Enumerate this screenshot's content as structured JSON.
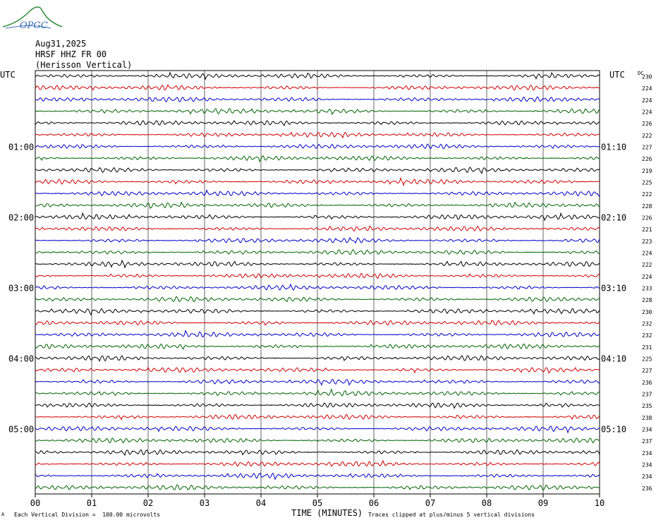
{
  "header": {
    "date": "Aug31,2025",
    "station": "HRSF HHZ FR 00",
    "location": "(Herisson Vertical)",
    "logo_text": "OPGC"
  },
  "footer": {
    "scale_note": "Each Vertical Division =  100.00 microvolts",
    "clip_note": "Traces clipped at plus/minus 5 vertical divisions",
    "corner_mark": "A"
  },
  "chart_data": {
    "type": "line",
    "title": "",
    "xlabel": "TIME (MINUTES)",
    "ylabel": "",
    "left_axis_title": "UTC",
    "right_axis_title": "UTC",
    "dc_title": "DC",
    "x_ticks": [
      "00",
      "01",
      "02",
      "03",
      "04",
      "05",
      "06",
      "07",
      "08",
      "09",
      "10"
    ],
    "xlim": [
      0,
      10
    ],
    "grid": true,
    "num_traces": 36,
    "trace_colors": [
      "#000000",
      "#d00000",
      "#0000c8",
      "#006400"
    ],
    "left_time_labels": [
      {
        "trace": 6,
        "label": "01:00"
      },
      {
        "trace": 12,
        "label": "02:00"
      },
      {
        "trace": 18,
        "label": "03:00"
      },
      {
        "trace": 24,
        "label": "04:00"
      },
      {
        "trace": 30,
        "label": "05:00"
      }
    ],
    "right_time_labels": [
      {
        "trace": 6,
        "label": "01:10"
      },
      {
        "trace": 12,
        "label": "02:10"
      },
      {
        "trace": 18,
        "label": "03:10"
      },
      {
        "trace": 24,
        "label": "04:10"
      },
      {
        "trace": 30,
        "label": "05:10"
      }
    ],
    "dc_values": [
      "230",
      "224",
      "224",
      "224",
      "226",
      "222",
      "227",
      "226",
      "219",
      "225",
      "222",
      "228",
      "226",
      "221",
      "223",
      "224",
      "222",
      "224",
      "233",
      "228",
      "230",
      "232",
      "232",
      "231",
      "225",
      "227",
      "236",
      "237",
      "235",
      "238",
      "234",
      "237",
      "234",
      "234",
      "234",
      "236"
    ]
  }
}
